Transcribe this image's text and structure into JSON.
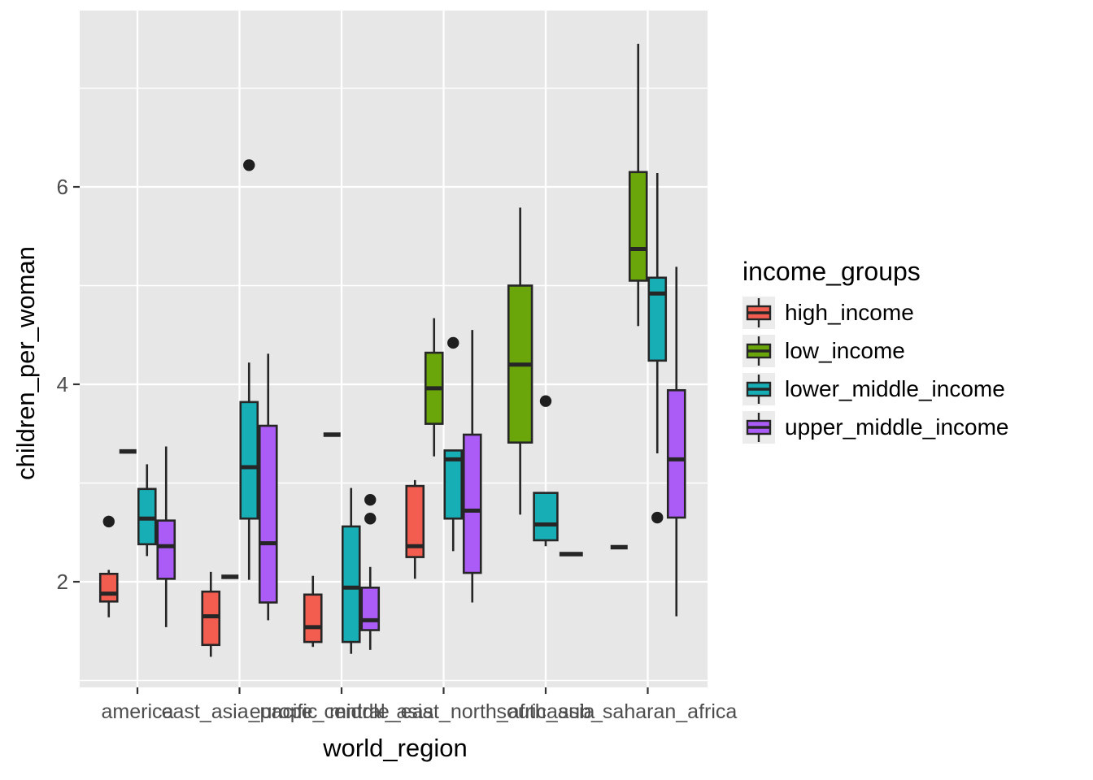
{
  "figure": {
    "y_axis": {
      "title": "children_per_woman",
      "tick_labels": [
        "6",
        "4",
        "2"
      ]
    },
    "x_axis": {
      "title": "world_region"
    },
    "legend": {
      "title": "income_groups",
      "items": [
        {
          "label": "high_income",
          "color": "#F25D50"
        },
        {
          "label": "low_income",
          "color": "#6AA50A"
        },
        {
          "label": "lower_middle_income",
          "color": "#17AFB5"
        },
        {
          "label": "upper_middle_income",
          "color": "#AB5CF7"
        }
      ]
    },
    "colors": {
      "panel_bg": "#E7E7E7",
      "gridline": "#FFFFFF",
      "box_stroke": "#262626",
      "tick_label": "#4D4D4D",
      "tick_mark": "#333333",
      "legend_key_bg": "#ECECEC"
    }
  },
  "chart_data": {
    "type": "boxplot",
    "title": "",
    "xlabel": "world_region",
    "ylabel": "children_per_woman",
    "ylim": [
      0.9,
      7.8
    ],
    "y_major_ticks": [
      2,
      4,
      6
    ],
    "y_minor_ticks": [
      1,
      3,
      5,
      7
    ],
    "grid": "major-and-minor-horizontal, major-vertical-per-category",
    "legend_position": "right",
    "categories": [
      "america",
      "east_asia_pacific",
      "europe_central_asia",
      "middle_east_north_africa",
      "south_asia",
      "sub_saharan_africa"
    ],
    "series": [
      {
        "name": "high_income",
        "color": "#F25D50",
        "boxes": [
          {
            "min": 1.64,
            "q1": 1.8,
            "median": 1.88,
            "q3": 2.08,
            "max": 2.12,
            "outliers": [
              2.61
            ]
          },
          {
            "min": 1.24,
            "q1": 1.36,
            "median": 1.65,
            "q3": 1.9,
            "max": 2.1,
            "outliers": []
          },
          {
            "min": 1.34,
            "q1": 1.39,
            "median": 1.54,
            "q3": 1.87,
            "max": 2.06,
            "outliers": []
          },
          {
            "min": 2.03,
            "q1": 2.25,
            "median": 2.36,
            "q3": 2.97,
            "max": 3.03,
            "outliers": []
          },
          null,
          {
            "min": 2.35,
            "q1": 2.35,
            "median": 2.35,
            "q3": 2.35,
            "max": 2.35,
            "outliers": []
          }
        ]
      },
      {
        "name": "low_income",
        "color": "#6AA50A",
        "boxes": [
          {
            "min": 3.32,
            "q1": 3.32,
            "median": 3.32,
            "q3": 3.32,
            "max": 3.32,
            "outliers": []
          },
          {
            "min": 2.05,
            "q1": 2.05,
            "median": 2.05,
            "q3": 2.05,
            "max": 2.05,
            "outliers": []
          },
          {
            "min": 3.49,
            "q1": 3.49,
            "median": 3.49,
            "q3": 3.49,
            "max": 3.49,
            "outliers": []
          },
          {
            "min": 3.27,
            "q1": 3.6,
            "median": 3.96,
            "q3": 4.32,
            "max": 4.67,
            "outliers": []
          },
          {
            "min": 2.68,
            "q1": 3.41,
            "median": 4.2,
            "q3": 5.0,
            "max": 5.79,
            "outliers": []
          },
          {
            "min": 4.59,
            "q1": 5.05,
            "median": 5.37,
            "q3": 6.15,
            "max": 7.45,
            "outliers": []
          }
        ]
      },
      {
        "name": "lower_middle_income",
        "color": "#17AFB5",
        "boxes": [
          {
            "min": 2.26,
            "q1": 2.38,
            "median": 2.64,
            "q3": 2.94,
            "max": 3.19,
            "outliers": []
          },
          {
            "min": 2.02,
            "q1": 2.64,
            "median": 3.16,
            "q3": 3.82,
            "max": 4.22,
            "outliers": [
              6.22
            ]
          },
          {
            "min": 1.27,
            "q1": 1.39,
            "median": 1.94,
            "q3": 2.56,
            "max": 2.95,
            "outliers": []
          },
          {
            "min": 2.31,
            "q1": 2.64,
            "median": 3.24,
            "q3": 3.33,
            "max": 3.33,
            "outliers": [
              4.42
            ]
          },
          {
            "min": 2.36,
            "q1": 2.42,
            "median": 2.58,
            "q3": 2.9,
            "max": 2.9,
            "outliers": [
              3.83
            ]
          },
          {
            "min": 3.3,
            "q1": 4.24,
            "median": 4.92,
            "q3": 5.08,
            "max": 6.14,
            "outliers": [
              2.65
            ]
          }
        ]
      },
      {
        "name": "upper_middle_income",
        "color": "#AB5CF7",
        "boxes": [
          {
            "min": 1.54,
            "q1": 2.03,
            "median": 2.36,
            "q3": 2.62,
            "max": 3.37,
            "outliers": []
          },
          {
            "min": 1.61,
            "q1": 1.79,
            "median": 2.39,
            "q3": 3.58,
            "max": 4.31,
            "outliers": []
          },
          {
            "min": 1.31,
            "q1": 1.51,
            "median": 1.61,
            "q3": 1.94,
            "max": 2.15,
            "outliers": [
              2.64,
              2.83
            ]
          },
          {
            "min": 1.79,
            "q1": 2.09,
            "median": 2.72,
            "q3": 3.49,
            "max": 4.55,
            "outliers": []
          },
          {
            "min": 2.28,
            "q1": 2.28,
            "median": 2.28,
            "q3": 2.28,
            "max": 2.28,
            "outliers": []
          },
          {
            "min": 1.65,
            "q1": 2.65,
            "median": 3.24,
            "q3": 3.94,
            "max": 5.19,
            "outliers": []
          }
        ]
      }
    ]
  }
}
